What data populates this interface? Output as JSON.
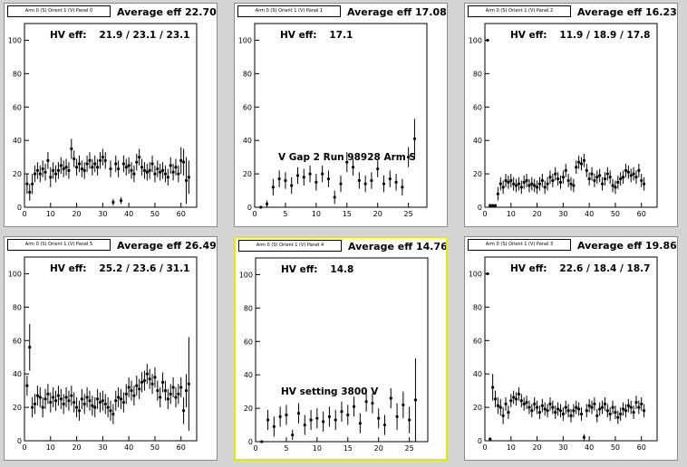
{
  "chart_data": [
    {
      "type": "scatter",
      "panel_label": "Arm 0 (S) Orient 1 (V) Panel 0",
      "avg_text": "Average eff 22.70",
      "hv_label": "HV eff:",
      "hv_values": "21.9 / 23.1 / 23.1",
      "annotation": "",
      "xlim": [
        0,
        66
      ],
      "ylim": [
        0,
        110
      ],
      "xticks": [
        0,
        10,
        20,
        30,
        40,
        50,
        60
      ],
      "yticks": [
        0,
        20,
        40,
        60,
        80,
        100
      ],
      "x": [
        1,
        2,
        3,
        4,
        5,
        6,
        7,
        8,
        9,
        10,
        11,
        12,
        13,
        14,
        15,
        16,
        17,
        18,
        19,
        20,
        21,
        22,
        23,
        24,
        25,
        26,
        27,
        28,
        29,
        30,
        31,
        33,
        34,
        35,
        36,
        37,
        38,
        39,
        40,
        41,
        42,
        43,
        44,
        45,
        46,
        47,
        48,
        49,
        50,
        51,
        52,
        53,
        54,
        55,
        56,
        57,
        58,
        59,
        60,
        61,
        62,
        63
      ],
      "y": [
        14,
        9,
        14,
        20,
        22,
        20,
        23,
        21,
        28,
        18,
        22,
        20,
        22,
        25,
        23,
        24,
        22,
        35,
        29,
        24,
        26,
        23,
        22,
        26,
        28,
        24,
        26,
        24,
        28,
        30,
        28,
        23,
        3,
        26,
        23,
        4,
        26,
        24,
        25,
        22,
        20,
        27,
        30,
        24,
        22,
        21,
        22,
        26,
        20,
        23,
        21,
        22,
        20,
        18,
        25,
        21,
        24,
        20,
        28,
        27,
        16,
        18
      ],
      "err": [
        6,
        5,
        6,
        5,
        5,
        5,
        5,
        5,
        5,
        6,
        5,
        5,
        5,
        5,
        5,
        5,
        5,
        6,
        5,
        5,
        5,
        5,
        5,
        5,
        5,
        5,
        5,
        5,
        5,
        5,
        5,
        5,
        2,
        5,
        5,
        2,
        5,
        5,
        5,
        5,
        5,
        5,
        5,
        5,
        5,
        5,
        5,
        5,
        5,
        5,
        5,
        5,
        5,
        5,
        5,
        5,
        5,
        5,
        8,
        8,
        14,
        10
      ]
    },
    {
      "type": "scatter",
      "panel_label": "Arm 0 (S) Orient 1 (V) Panel 1",
      "avg_text": "Average eff 17.08",
      "hv_label": "HV eff:",
      "hv_values": "17.1",
      "annotation": "V Gap 2 Run 98928 Arm S",
      "xlim": [
        0,
        28
      ],
      "ylim": [
        0,
        110
      ],
      "xticks": [
        0,
        5,
        10,
        15,
        20,
        25
      ],
      "yticks": [
        0,
        20,
        40,
        60,
        80,
        100
      ],
      "x": [
        1,
        2,
        3,
        4,
        5,
        6,
        7,
        8,
        9,
        10,
        11,
        12,
        13,
        14,
        15,
        16,
        17,
        18,
        19,
        20,
        21,
        22,
        23,
        24,
        25,
        26
      ],
      "y": [
        0,
        2,
        12,
        17,
        16,
        13,
        19,
        18,
        20,
        15,
        20,
        17,
        6,
        14,
        27,
        24,
        16,
        14,
        16,
        23,
        14,
        17,
        15,
        12,
        30,
        41
      ],
      "err": [
        0,
        2,
        5,
        5,
        5,
        5,
        5,
        5,
        5,
        5,
        5,
        5,
        4,
        5,
        6,
        5,
        5,
        5,
        5,
        5,
        5,
        5,
        5,
        5,
        6,
        12
      ]
    },
    {
      "type": "scatter",
      "panel_label": "Arm 0 (S) Orient 1 (V) Panel 2",
      "avg_text": "Average eff 16.23",
      "hv_label": "HV eff:",
      "hv_values": "11.9 / 18.9 / 17.8",
      "annotation": "",
      "xlim": [
        0,
        66
      ],
      "ylim": [
        0,
        110
      ],
      "xticks": [
        0,
        10,
        20,
        30,
        40,
        50,
        60
      ],
      "yticks": [
        0,
        20,
        40,
        60,
        80,
        100
      ],
      "x": [
        1,
        2,
        3,
        4,
        5,
        6,
        7,
        8,
        9,
        10,
        11,
        12,
        13,
        14,
        15,
        16,
        17,
        18,
        19,
        20,
        21,
        22,
        23,
        24,
        25,
        26,
        27,
        28,
        29,
        30,
        31,
        32,
        33,
        34,
        35,
        36,
        37,
        38,
        39,
        40,
        41,
        42,
        43,
        44,
        45,
        46,
        47,
        48,
        49,
        50,
        51,
        52,
        53,
        54,
        55,
        56,
        57,
        58,
        59,
        60,
        61
      ],
      "y": [
        100,
        1,
        1,
        1,
        8,
        14,
        12,
        16,
        15,
        16,
        14,
        13,
        14,
        12,
        15,
        16,
        13,
        14,
        13,
        12,
        14,
        16,
        12,
        14,
        18,
        16,
        20,
        17,
        15,
        18,
        22,
        16,
        14,
        13,
        24,
        27,
        26,
        28,
        22,
        17,
        20,
        16,
        18,
        19,
        14,
        17,
        20,
        18,
        13,
        12,
        15,
        17,
        18,
        22,
        21,
        19,
        20,
        18,
        22,
        16,
        14
      ],
      "err": [
        0,
        1,
        1,
        1,
        4,
        4,
        4,
        4,
        4,
        4,
        4,
        4,
        4,
        4,
        4,
        4,
        4,
        4,
        4,
        4,
        4,
        4,
        4,
        4,
        4,
        4,
        4,
        4,
        4,
        4,
        4,
        4,
        4,
        4,
        4,
        4,
        4,
        4,
        4,
        4,
        4,
        4,
        4,
        4,
        4,
        4,
        4,
        4,
        4,
        4,
        4,
        4,
        4,
        4,
        4,
        4,
        4,
        4,
        4,
        4,
        4
      ]
    },
    {
      "type": "scatter",
      "panel_label": "Arm 0 (S) Orient 1 (V) Panel 5",
      "avg_text": "Average eff 26.49",
      "hv_label": "HV eff:",
      "hv_values": "25.2 / 23.6 / 31.1",
      "annotation": "",
      "xlim": [
        0,
        66
      ],
      "ylim": [
        0,
        110
      ],
      "xticks": [
        0,
        10,
        20,
        30,
        40,
        50,
        60
      ],
      "yticks": [
        0,
        20,
        40,
        60,
        80,
        100
      ],
      "x": [
        1,
        2,
        3,
        4,
        5,
        6,
        7,
        8,
        9,
        10,
        11,
        12,
        13,
        14,
        15,
        16,
        17,
        18,
        19,
        20,
        21,
        22,
        23,
        24,
        25,
        26,
        27,
        28,
        29,
        30,
        31,
        32,
        33,
        34,
        35,
        36,
        37,
        38,
        39,
        40,
        41,
        42,
        43,
        44,
        45,
        46,
        47,
        48,
        49,
        50,
        51,
        52,
        53,
        54,
        55,
        56,
        57,
        58,
        59,
        60,
        61,
        62,
        63
      ],
      "y": [
        33,
        56,
        20,
        22,
        27,
        26,
        20,
        25,
        28,
        23,
        26,
        24,
        27,
        25,
        22,
        26,
        24,
        27,
        23,
        20,
        18,
        25,
        22,
        26,
        24,
        21,
        20,
        25,
        23,
        24,
        22,
        20,
        18,
        16,
        24,
        26,
        25,
        23,
        28,
        32,
        30,
        27,
        33,
        31,
        35,
        36,
        40,
        37,
        34,
        38,
        30,
        26,
        35,
        30,
        25,
        28,
        32,
        26,
        28,
        32,
        18,
        30,
        34
      ],
      "err": [
        6,
        14,
        6,
        6,
        6,
        6,
        6,
        6,
        6,
        6,
        6,
        6,
        6,
        6,
        6,
        6,
        6,
        6,
        6,
        6,
        6,
        6,
        6,
        6,
        6,
        6,
        6,
        6,
        6,
        6,
        6,
        6,
        6,
        6,
        6,
        6,
        6,
        6,
        6,
        6,
        6,
        6,
        6,
        6,
        6,
        6,
        6,
        6,
        6,
        6,
        6,
        6,
        6,
        6,
        6,
        6,
        6,
        6,
        6,
        6,
        8,
        10,
        28
      ]
    },
    {
      "type": "scatter",
      "panel_label": "Arm 0 (S) Orient 1 (V) Panel 4",
      "avg_text": "Average eff 14.76",
      "hv_label": "HV eff:",
      "hv_values": "14.8",
      "annotation": "HV setting 3800 V",
      "xlim": [
        0,
        28
      ],
      "ylim": [
        0,
        110
      ],
      "xticks": [
        0,
        5,
        10,
        15,
        20,
        25
      ],
      "yticks": [
        0,
        20,
        40,
        60,
        80,
        100
      ],
      "x": [
        1,
        2,
        3,
        4,
        5,
        6,
        7,
        8,
        9,
        10,
        11,
        12,
        13,
        14,
        15,
        16,
        17,
        18,
        19,
        20,
        21,
        22,
        23,
        24,
        25,
        26
      ],
      "y": [
        0,
        13,
        9,
        15,
        16,
        4,
        17,
        10,
        13,
        14,
        12,
        15,
        13,
        18,
        16,
        21,
        11,
        24,
        23,
        14,
        10,
        26,
        15,
        22,
        13,
        25
      ],
      "err": [
        0,
        6,
        6,
        6,
        6,
        3,
        6,
        6,
        6,
        6,
        6,
        6,
        6,
        6,
        6,
        6,
        6,
        6,
        6,
        6,
        6,
        6,
        8,
        8,
        8,
        25
      ]
    },
    {
      "type": "scatter",
      "panel_label": "Arm 0 (S) Orient 1 (V) Panel 3",
      "avg_text": "Average eff 19.86",
      "hv_label": "HV eff:",
      "hv_values": "22.6 / 18.4 / 18.7",
      "annotation": "",
      "xlim": [
        0,
        66
      ],
      "ylim": [
        0,
        110
      ],
      "xticks": [
        0,
        10,
        20,
        30,
        40,
        50,
        60
      ],
      "yticks": [
        0,
        20,
        40,
        60,
        80,
        100
      ],
      "x": [
        1,
        2,
        3,
        4,
        5,
        6,
        7,
        8,
        9,
        10,
        11,
        12,
        13,
        14,
        15,
        16,
        17,
        18,
        19,
        20,
        21,
        22,
        23,
        24,
        25,
        26,
        27,
        28,
        29,
        30,
        31,
        32,
        33,
        34,
        35,
        36,
        37,
        38,
        39,
        40,
        41,
        42,
        43,
        44,
        45,
        46,
        47,
        48,
        49,
        50,
        51,
        52,
        53,
        54,
        55,
        56,
        57,
        58,
        59,
        60,
        61
      ],
      "y": [
        100,
        1,
        32,
        25,
        21,
        20,
        15,
        22,
        17,
        24,
        26,
        25,
        28,
        24,
        22,
        23,
        20,
        18,
        22,
        20,
        17,
        21,
        19,
        18,
        22,
        20,
        17,
        19,
        18,
        16,
        20,
        18,
        15,
        18,
        20,
        19,
        16,
        2,
        18,
        21,
        20,
        22,
        15,
        19,
        20,
        22,
        18,
        16,
        20,
        17,
        14,
        16,
        19,
        18,
        21,
        20,
        17,
        23,
        20,
        22,
        18
      ],
      "err": [
        0,
        1,
        8,
        5,
        5,
        5,
        5,
        4,
        4,
        4,
        4,
        4,
        4,
        4,
        4,
        4,
        4,
        4,
        4,
        4,
        4,
        4,
        4,
        4,
        4,
        4,
        4,
        4,
        4,
        4,
        4,
        4,
        4,
        4,
        4,
        4,
        4,
        2,
        4,
        4,
        4,
        4,
        4,
        4,
        4,
        4,
        4,
        4,
        4,
        4,
        4,
        4,
        4,
        4,
        4,
        4,
        4,
        4,
        4,
        4,
        4
      ]
    }
  ]
}
